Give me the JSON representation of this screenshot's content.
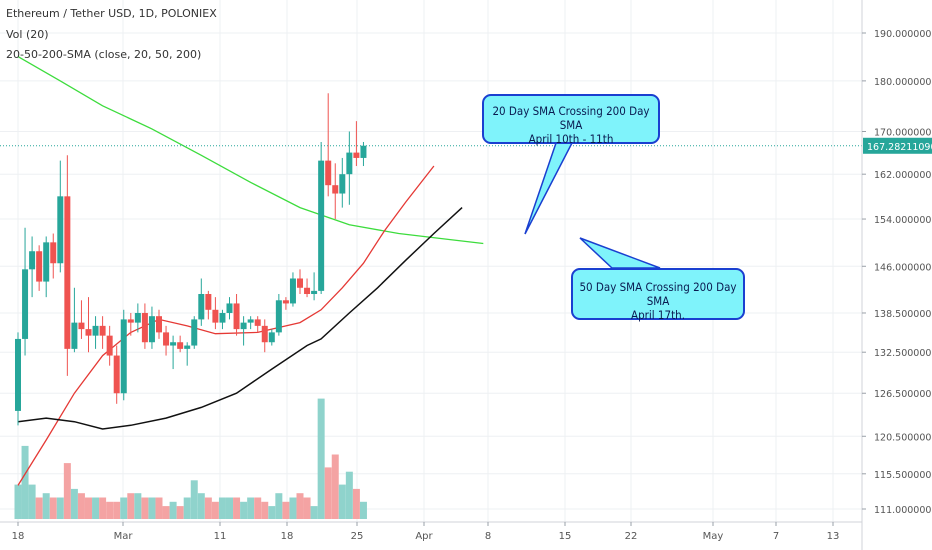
{
  "header": {
    "symbol": "Ethereum / Tether USD, 1D, POLONIEX",
    "vol_indicator": "Vol (20)",
    "sma_indicator": "20-50-200-SMA (close, 20, 50, 200)"
  },
  "annotations": [
    {
      "line1": "20 Day SMA Crossing 200 Day SMA",
      "line2": "April 10th - 11th"
    },
    {
      "line1": "50 Day SMA Crossing 200 Day SMA",
      "line2": "April 17th."
    }
  ],
  "price_label": "167.28211090",
  "colors": {
    "up": "#26a69a",
    "down": "#ef5350",
    "sma20": "#e53935",
    "sma50": "#111111",
    "sma200": "#3ddc3d",
    "callout_fill": "#7ff3fb",
    "callout_border": "#1a3fd0",
    "price_tag": "#26a69a"
  },
  "chart_data": {
    "type": "candlestick",
    "y_axis_ticks": [
      "190.00000000",
      "180.00000000",
      "170.00000000",
      "162.00000000",
      "154.00000000",
      "146.00000000",
      "138.50000000",
      "132.50000000",
      "126.50000000",
      "120.50000000",
      "115.50000000",
      "111.00000000"
    ],
    "x_axis_ticks": [
      "18",
      "Mar",
      "11",
      "18",
      "25",
      "Apr",
      "8",
      "15",
      "22",
      "May",
      "7",
      "13"
    ],
    "price_scale": "log",
    "ylim": [
      110,
      195
    ],
    "candles": [
      {
        "date": "2019-02-18",
        "o": 124.0,
        "h": 135.5,
        "l": 122.0,
        "c": 134.5
      },
      {
        "date": "2019-02-19",
        "o": 134.5,
        "h": 152.5,
        "l": 132.0,
        "c": 145.5
      },
      {
        "date": "2019-02-20",
        "o": 145.5,
        "h": 151.0,
        "l": 141.0,
        "c": 148.5
      },
      {
        "date": "2019-02-21",
        "o": 148.5,
        "h": 149.5,
        "l": 142.0,
        "c": 143.5
      },
      {
        "date": "2019-02-22",
        "o": 143.5,
        "h": 151.0,
        "l": 141.0,
        "c": 150.0
      },
      {
        "date": "2019-02-23",
        "o": 150.0,
        "h": 151.5,
        "l": 144.0,
        "c": 146.5
      },
      {
        "date": "2019-02-24",
        "o": 146.5,
        "h": 164.5,
        "l": 145.0,
        "c": 158.0
      },
      {
        "date": "2019-02-25",
        "o": 158.0,
        "h": 165.5,
        "l": 129.0,
        "c": 133.0
      },
      {
        "date": "2019-02-26",
        "o": 133.0,
        "h": 142.5,
        "l": 132.5,
        "c": 137.0
      },
      {
        "date": "2019-02-27",
        "o": 137.0,
        "h": 140.5,
        "l": 134.5,
        "c": 136.0
      },
      {
        "date": "2019-02-28",
        "o": 136.0,
        "h": 141.0,
        "l": 132.5,
        "c": 135.0
      },
      {
        "date": "2019-03-01",
        "o": 135.0,
        "h": 138.0,
        "l": 133.0,
        "c": 136.5
      },
      {
        "date": "2019-03-02",
        "o": 136.5,
        "h": 138.0,
        "l": 133.0,
        "c": 135.0
      },
      {
        "date": "2019-03-03",
        "o": 135.0,
        "h": 136.5,
        "l": 130.5,
        "c": 132.0
      },
      {
        "date": "2019-03-04",
        "o": 132.0,
        "h": 133.5,
        "l": 125.0,
        "c": 126.5
      },
      {
        "date": "2019-03-05",
        "o": 126.5,
        "h": 139.0,
        "l": 125.5,
        "c": 137.5
      },
      {
        "date": "2019-03-06",
        "o": 137.5,
        "h": 138.5,
        "l": 135.0,
        "c": 137.0
      },
      {
        "date": "2019-03-07",
        "o": 137.0,
        "h": 140.0,
        "l": 135.5,
        "c": 138.5
      },
      {
        "date": "2019-03-08",
        "o": 138.5,
        "h": 140.0,
        "l": 133.0,
        "c": 134.0
      },
      {
        "date": "2019-03-09",
        "o": 134.0,
        "h": 139.5,
        "l": 133.0,
        "c": 138.0
      },
      {
        "date": "2019-03-10",
        "o": 138.0,
        "h": 139.0,
        "l": 134.5,
        "c": 135.5
      },
      {
        "date": "2019-03-11",
        "o": 135.5,
        "h": 136.5,
        "l": 132.0,
        "c": 133.5
      },
      {
        "date": "2019-03-12",
        "o": 133.5,
        "h": 135.0,
        "l": 130.0,
        "c": 134.0
      },
      {
        "date": "2019-03-13",
        "o": 134.0,
        "h": 135.0,
        "l": 132.5,
        "c": 133.0
      },
      {
        "date": "2019-03-14",
        "o": 133.0,
        "h": 134.0,
        "l": 130.5,
        "c": 133.5
      },
      {
        "date": "2019-03-15",
        "o": 133.5,
        "h": 138.0,
        "l": 133.0,
        "c": 137.5
      },
      {
        "date": "2019-03-16",
        "o": 137.5,
        "h": 144.0,
        "l": 136.5,
        "c": 141.5
      },
      {
        "date": "2019-03-17",
        "o": 141.5,
        "h": 142.0,
        "l": 137.5,
        "c": 139.0
      },
      {
        "date": "2019-03-18",
        "o": 139.0,
        "h": 141.0,
        "l": 136.0,
        "c": 137.0
      },
      {
        "date": "2019-03-19",
        "o": 137.0,
        "h": 139.0,
        "l": 136.0,
        "c": 138.5
      },
      {
        "date": "2019-03-20",
        "o": 138.5,
        "h": 141.0,
        "l": 137.5,
        "c": 140.0
      },
      {
        "date": "2019-03-21",
        "o": 140.0,
        "h": 141.5,
        "l": 135.0,
        "c": 136.0
      },
      {
        "date": "2019-03-22",
        "o": 136.0,
        "h": 138.0,
        "l": 133.5,
        "c": 137.0
      },
      {
        "date": "2019-03-23",
        "o": 137.0,
        "h": 138.0,
        "l": 136.0,
        "c": 137.5
      },
      {
        "date": "2019-03-24",
        "o": 137.5,
        "h": 138.0,
        "l": 135.5,
        "c": 136.5
      },
      {
        "date": "2019-03-25",
        "o": 136.5,
        "h": 137.5,
        "l": 132.5,
        "c": 134.0
      },
      {
        "date": "2019-03-26",
        "o": 134.0,
        "h": 136.0,
        "l": 133.5,
        "c": 135.5
      },
      {
        "date": "2019-03-27",
        "o": 135.5,
        "h": 141.5,
        "l": 135.0,
        "c": 140.5
      },
      {
        "date": "2019-03-28",
        "o": 140.5,
        "h": 141.0,
        "l": 139.0,
        "c": 140.0
      },
      {
        "date": "2019-03-29",
        "o": 140.0,
        "h": 145.0,
        "l": 139.5,
        "c": 144.0
      },
      {
        "date": "2019-03-30",
        "o": 144.0,
        "h": 145.5,
        "l": 141.5,
        "c": 142.5
      },
      {
        "date": "2019-03-31",
        "o": 142.5,
        "h": 144.0,
        "l": 141.0,
        "c": 141.5
      },
      {
        "date": "2019-04-01",
        "o": 141.5,
        "h": 145.0,
        "l": 140.5,
        "c": 142.0
      },
      {
        "date": "2019-04-02",
        "o": 142.0,
        "h": 168.0,
        "l": 141.5,
        "c": 164.5
      },
      {
        "date": "2019-04-03",
        "o": 164.5,
        "h": 177.5,
        "l": 158.0,
        "c": 160.0
      },
      {
        "date": "2019-04-04",
        "o": 160.0,
        "h": 164.0,
        "l": 154.0,
        "c": 158.5
      },
      {
        "date": "2019-04-05",
        "o": 158.5,
        "h": 165.0,
        "l": 156.0,
        "c": 162.0
      },
      {
        "date": "2019-04-06",
        "o": 162.0,
        "h": 170.0,
        "l": 156.5,
        "c": 166.0
      },
      {
        "date": "2019-04-07",
        "o": 166.0,
        "h": 172.0,
        "l": 163.5,
        "c": 165.0
      },
      {
        "date": "2019-04-08",
        "o": 165.0,
        "h": 168.0,
        "l": 163.5,
        "c": 167.3
      }
    ],
    "volume": [
      8,
      17,
      8,
      5,
      6,
      5,
      5,
      13,
      7,
      6,
      5,
      5,
      5,
      4,
      4,
      5,
      6,
      6,
      5,
      5,
      5,
      3,
      4,
      3,
      5,
      9,
      6,
      5,
      4,
      5,
      5,
      5,
      4,
      5,
      5,
      4,
      3,
      6,
      4,
      5,
      6,
      5,
      3,
      28,
      12,
      15,
      8,
      11,
      7,
      4
    ],
    "sma20": [
      {
        "date": "2019-02-18",
        "v": 114.0
      },
      {
        "date": "2019-02-22",
        "v": 120.0
      },
      {
        "date": "2019-02-26",
        "v": 126.5
      },
      {
        "date": "2019-03-02",
        "v": 132.0
      },
      {
        "date": "2019-03-06",
        "v": 135.5
      },
      {
        "date": "2019-03-10",
        "v": 137.5
      },
      {
        "date": "2019-03-14",
        "v": 136.5
      },
      {
        "date": "2019-03-18",
        "v": 135.3
      },
      {
        "date": "2019-03-24",
        "v": 135.5
      },
      {
        "date": "2019-03-30",
        "v": 137.0
      },
      {
        "date": "2019-04-02",
        "v": 139.0
      },
      {
        "date": "2019-04-05",
        "v": 142.5
      },
      {
        "date": "2019-04-08",
        "v": 146.5
      },
      {
        "date": "2019-04-11",
        "v": 152.0
      },
      {
        "date": "2019-04-14",
        "v": 157.0
      },
      {
        "date": "2019-04-18",
        "v": 163.5
      }
    ],
    "sma50": [
      {
        "date": "2019-02-18",
        "v": 122.5
      },
      {
        "date": "2019-02-22",
        "v": 123.0
      },
      {
        "date": "2019-02-26",
        "v": 122.5
      },
      {
        "date": "2019-03-02",
        "v": 121.5
      },
      {
        "date": "2019-03-06",
        "v": 122.0
      },
      {
        "date": "2019-03-11",
        "v": 123.0
      },
      {
        "date": "2019-03-16",
        "v": 124.5
      },
      {
        "date": "2019-03-21",
        "v": 126.5
      },
      {
        "date": "2019-03-26",
        "v": 130.0
      },
      {
        "date": "2019-03-31",
        "v": 133.5
      },
      {
        "date": "2019-04-02",
        "v": 134.5
      },
      {
        "date": "2019-04-06",
        "v": 138.5
      },
      {
        "date": "2019-04-10",
        "v": 142.5
      },
      {
        "date": "2019-04-14",
        "v": 147.0
      },
      {
        "date": "2019-04-18",
        "v": 151.5
      },
      {
        "date": "2019-04-22",
        "v": 156.0
      }
    ],
    "sma200": [
      {
        "date": "2019-02-18",
        "v": 185.0
      },
      {
        "date": "2019-02-24",
        "v": 180.0
      },
      {
        "date": "2019-03-02",
        "v": 175.0
      },
      {
        "date": "2019-03-09",
        "v": 170.5
      },
      {
        "date": "2019-03-16",
        "v": 165.5
      },
      {
        "date": "2019-03-23",
        "v": 160.5
      },
      {
        "date": "2019-03-30",
        "v": 156.0
      },
      {
        "date": "2019-04-06",
        "v": 153.0
      },
      {
        "date": "2019-04-13",
        "v": 151.5
      },
      {
        "date": "2019-04-20",
        "v": 150.5
      },
      {
        "date": "2019-04-25",
        "v": 149.8
      }
    ],
    "last_price": 167.2821109
  }
}
